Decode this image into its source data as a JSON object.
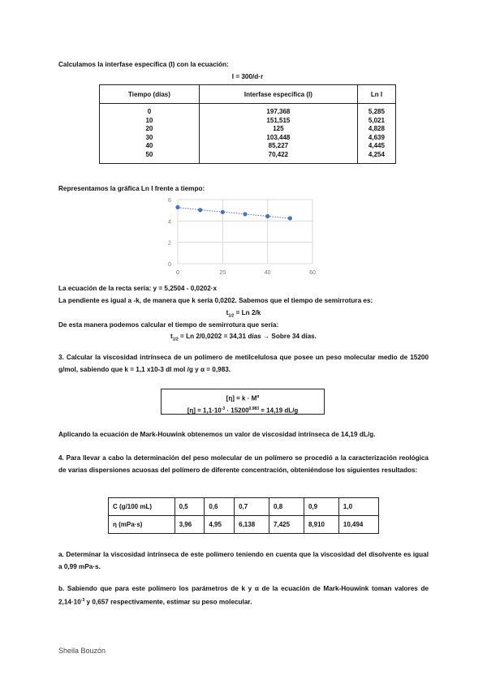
{
  "intro": "Calculamos la interfase específica (I) con la ecuación:",
  "formula_I": "I = 300/d·r",
  "table1": {
    "headers": [
      "Tiempo (días)",
      "Interfase específica (I)",
      "Ln I"
    ],
    "rows": [
      [
        "0",
        "197,368",
        "5,285"
      ],
      [
        "10",
        "151,515",
        "5,021"
      ],
      [
        "20",
        "125",
        "4,828"
      ],
      [
        "30",
        "103,448",
        "4,639"
      ],
      [
        "40",
        "85,227",
        "4,445"
      ],
      [
        "50",
        "70,422",
        "4,254"
      ]
    ]
  },
  "chart_intro": "Representamos la gráfica Ln I frente a tiempo:",
  "chart_data": {
    "type": "scatter",
    "x": [
      0,
      10,
      20,
      30,
      40,
      50
    ],
    "y": [
      5.285,
      5.021,
      4.828,
      4.639,
      4.445,
      4.254
    ],
    "xlim": [
      0,
      60
    ],
    "ylim": [
      0,
      6
    ],
    "xticks": [
      "0",
      "20",
      "40",
      "60"
    ],
    "yticks": [
      "0",
      "2",
      "4",
      "6"
    ],
    "trendline": "linear dotted",
    "grid": true,
    "color": "#4472c4"
  },
  "line1": "La ecuación de la recta sería: y = 5,2504 - 0,0202·x",
  "line2": "La pendiente es igual a -k, de manera que k sería 0,0202. Sabemos que el tiempo de semirrotura es:",
  "eq_t": "Ln 2/k",
  "t_label": "t",
  "t_sub": "1/2",
  "line3": "De esta manera podemos calcular el tiempo de semirrotura que sería:",
  "eq_t2": "= Ln 2/0,0202 = 34,31 días → Sobre 34 días.",
  "q3": "3. Calcular la viscosidad intrínseca de un polímero de metilcelulosa que posee un peso molecular medio de 15200 g/mol, sabiendo que k = 1,1 x10-3 dl mol /g y α = 0,983.",
  "box": {
    "l1": "[η] = k · M",
    "l1_sup": "α",
    "l2a": "[η] = 1,1·10",
    "l2_sup1": "-3",
    "l2b": " · 15200",
    "l2_sup2": "0,983",
    "l2c": " = 14,19 dL/g"
  },
  "q3_answer": "Aplicando la ecuación de Mark-Houwink obtenemos un valor de viscosidad intrínseca de 14,19 dL/g.",
  "q4": "4. Para llevar a cabo la determinación del peso molecular de un polímero se procedió a la caracterización reológica de varias dispersiones acuosas del polímero de diferente concentración, obteniéndose los siguientes resultados:",
  "table2": {
    "rows": [
      [
        "C (g/100 mL)",
        "0,5",
        "0,6",
        "0,7",
        "0,8",
        "0,9",
        "1,0"
      ],
      [
        "η (mPa·s)",
        "3,96",
        "4,95",
        "6,138",
        "7,425",
        "8,910",
        "10,494"
      ]
    ]
  },
  "qa": "a. Determinar la viscosidad intrínseca de este polímero teniendo en cuenta que la viscosidad del disolvente es igual a 0,99 mPa·s.",
  "qb_a": "b. Sabiendo que para este polímero los parámetros de k y α de la ecuación de Mark-Houwink toman valores de 2,14·10",
  "qb_sup": "-3",
  "qb_b": " y 0,657 respectivamente, estimar su peso molecular.",
  "footer": "Sheila Bouzón"
}
